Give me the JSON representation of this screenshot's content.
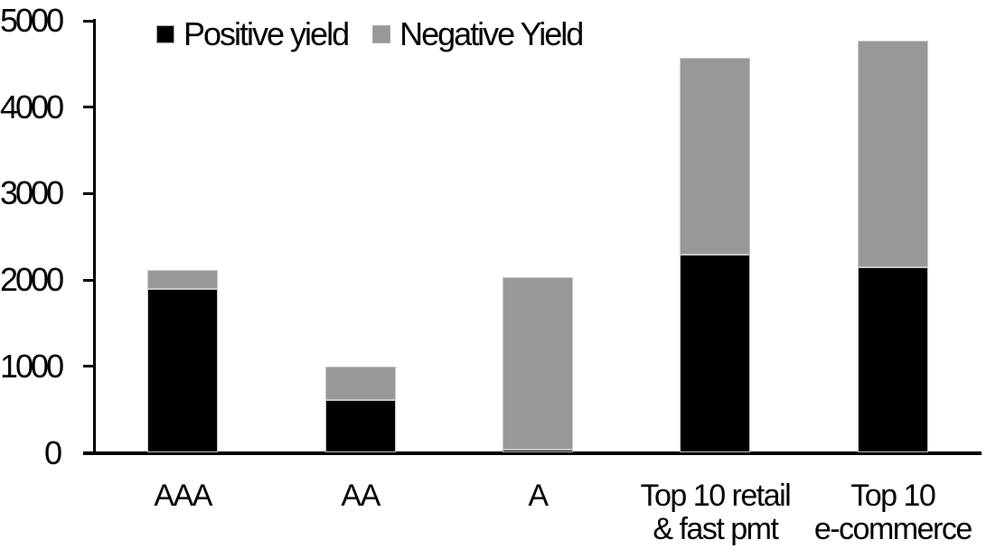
{
  "chart_data": {
    "type": "bar",
    "stacked": true,
    "title": "",
    "xlabel": "",
    "ylabel": "",
    "categories": [
      "AAA",
      "AA",
      "A",
      "Top 10 retail\n& fast pmt",
      "Top 10\ne-commerce"
    ],
    "series": [
      {
        "name": "Positive yield",
        "color": "#000000",
        "values": [
          1900,
          610,
          40,
          2290,
          2150
        ]
      },
      {
        "name": "Negative Yield",
        "color": "#989898",
        "values": [
          220,
          390,
          1990,
          2280,
          2620
        ]
      }
    ],
    "totals": [
      2120,
      1000,
      2030,
      4570,
      4770
    ],
    "ylim": [
      0,
      5000
    ],
    "yticks": [
      0,
      1000,
      2000,
      3000,
      4000,
      5000
    ],
    "grid": false,
    "legend_position": "top",
    "background_color": "#ffffff",
    "axis_color": "#000000"
  }
}
